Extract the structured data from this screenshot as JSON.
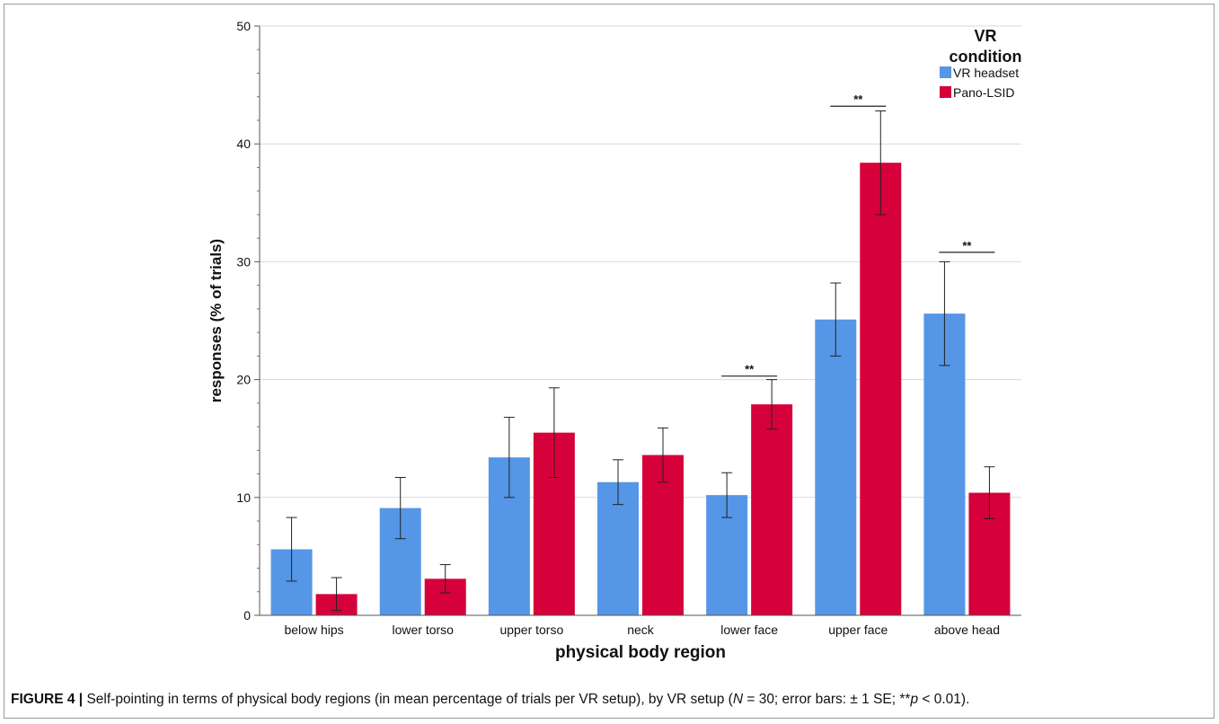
{
  "chart_data": {
    "type": "bar",
    "categories": [
      "below hips",
      "lower torso",
      "upper torso",
      "neck",
      "lower face",
      "upper face",
      "above head"
    ],
    "series": [
      {
        "name": "VR headset",
        "color": "#5596e6",
        "values": [
          5.6,
          9.1,
          13.4,
          11.3,
          10.2,
          25.1,
          25.6
        ],
        "err": [
          2.7,
          2.6,
          3.4,
          1.9,
          1.9,
          3.1,
          4.4
        ]
      },
      {
        "name": "Pano-LSID",
        "color": "#d6003a",
        "values": [
          1.8,
          3.1,
          15.5,
          13.6,
          17.9,
          38.4,
          10.4
        ],
        "err": [
          1.4,
          1.2,
          3.8,
          2.3,
          2.1,
          4.4,
          2.2
        ]
      }
    ],
    "significance": [
      {
        "category": "lower face",
        "label": "**",
        "y": 20.3
      },
      {
        "category": "upper face",
        "label": "**",
        "y": 43.2
      },
      {
        "category": "above head",
        "label": "**",
        "y": 30.8
      }
    ],
    "xlabel": "physical body region",
    "ylabel": "responses (% of trials)",
    "ylim": [
      0,
      50
    ],
    "yticks": [
      0,
      10,
      20,
      30,
      40,
      50
    ],
    "grid": true,
    "legend": {
      "title": "VR condition",
      "position": "top-right"
    }
  },
  "caption": {
    "label": "FIGURE 4 |",
    "text_before_n": " Self-pointing in terms of physical body regions (in mean percentage of trials per VR setup), by VR setup (",
    "n_symbol": "N",
    "text_after_n": " = 30; error bars: ± 1 SE; **",
    "p_symbol": "p",
    "text_after_p": " < 0.01)."
  }
}
